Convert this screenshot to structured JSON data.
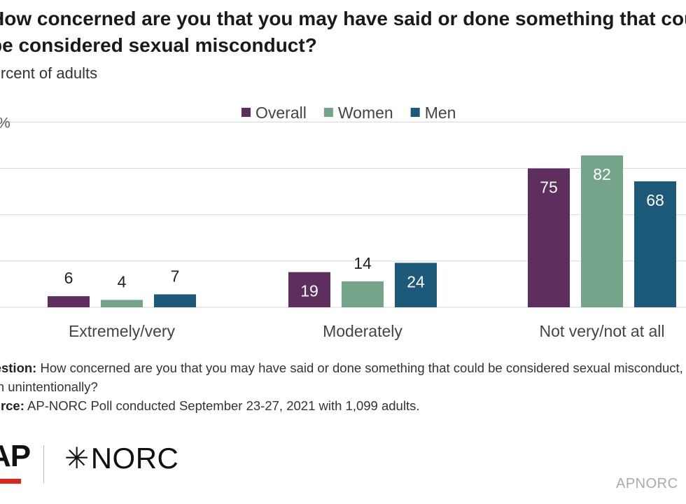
{
  "header": {
    "title": "How concerned are you that you may have said or done something that could be considered sexual misconduct?",
    "subtitle": "Percent of adults"
  },
  "chart_data": {
    "type": "bar",
    "categories": [
      "Extremely/very",
      "Moderately",
      "Not very/not at all"
    ],
    "series": [
      {
        "name": "Overall",
        "color": "#5e2f5e",
        "values": [
          6,
          19,
          75
        ]
      },
      {
        "name": "Women",
        "color": "#74a58a",
        "values": [
          4,
          14,
          82
        ]
      },
      {
        "name": "Men",
        "color": "#1d5a7a",
        "values": [
          7,
          24,
          68
        ]
      }
    ],
    "ylim": [
      0,
      100
    ],
    "ytick_label": "%",
    "grid": true,
    "legend": "top-center"
  },
  "notes": {
    "question_label": "Question:",
    "question_text": "How concerned are you that you may have said or done something that could be considered sexual misconduct, even unintentionally?",
    "source_label": "Source:",
    "source_text": "AP-NORC Poll conducted September 23-27, 2021 with 1,099 adults."
  },
  "logos": {
    "ap": "AP",
    "norc_star": "✳",
    "norc": "NORC",
    "brand": "APNORC"
  }
}
